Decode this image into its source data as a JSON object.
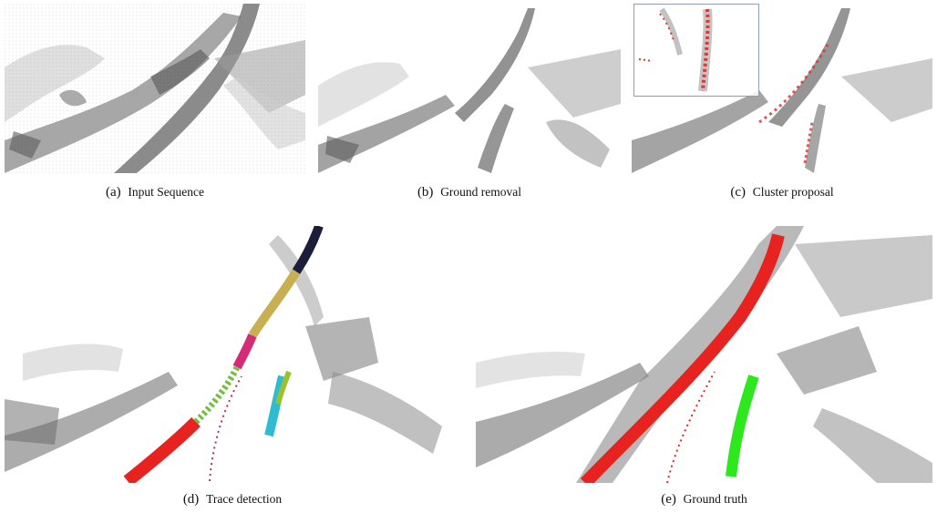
{
  "figure": {
    "panels": [
      {
        "label": "(a)",
        "caption": "Input Sequence"
      },
      {
        "label": "(b)",
        "caption": "Ground removal"
      },
      {
        "label": "(c)",
        "caption": "Cluster proposal"
      },
      {
        "label": "(d)",
        "caption": "Trace detection"
      },
      {
        "label": "(e)",
        "caption": "Ground truth"
      }
    ],
    "colors": {
      "background": "#ffffff",
      "scan_gray": "#7d7d7d",
      "scan_light": "#b9b9b9",
      "proposal_red": "#d63a3a",
      "truth_red": "#e8221e",
      "truth_green": "#2ee81e",
      "inset_border": "#8f9eb2"
    }
  }
}
